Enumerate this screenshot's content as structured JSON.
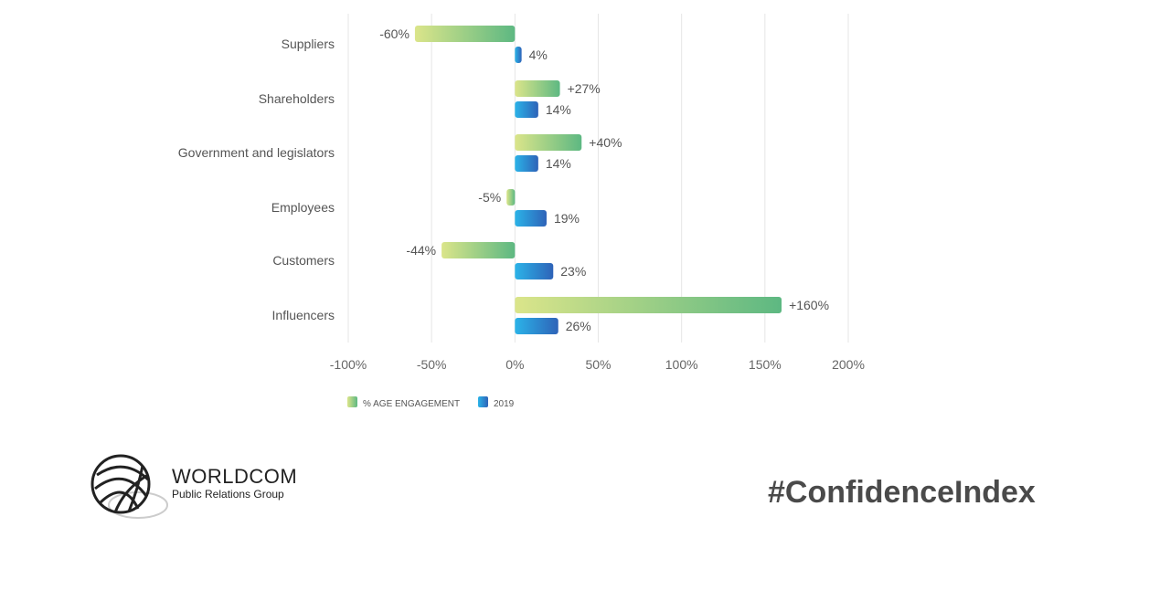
{
  "chart_data": {
    "type": "bar",
    "orientation": "horizontal",
    "categories": [
      "Suppliers",
      "Shareholders",
      "Government and legislators",
      "Employees",
      "Customers",
      "Influencers"
    ],
    "series": [
      {
        "name": "% AGE ENGAGEMENT",
        "values": [
          -60,
          27,
          40,
          -5,
          -44,
          160
        ],
        "labels": [
          "-60%",
          "+27%",
          "+40%",
          "-5%",
          "-44%",
          "+160%"
        ],
        "colors": [
          "#dbe58a",
          "#5db882"
        ]
      },
      {
        "name": "2019",
        "values": [
          4,
          14,
          14,
          19,
          23,
          26
        ],
        "labels": [
          "4%",
          "14%",
          "14%",
          "19%",
          "23%",
          "26%"
        ],
        "colors": [
          "#2bb3e8",
          "#2e63b8"
        ]
      }
    ],
    "xlim": [
      -100,
      200
    ],
    "xticks": [
      -100,
      -50,
      0,
      50,
      100,
      150,
      200
    ],
    "xtick_labels": [
      "-100%",
      "-50%",
      "0%",
      "50%",
      "100%",
      "150%",
      "200%"
    ],
    "grid": true,
    "legend": "bottom-left"
  },
  "logo": {
    "title": "WORLDCOM",
    "subtitle": "Public Relations Group"
  },
  "hashtag": "#ConfidenceIndex"
}
